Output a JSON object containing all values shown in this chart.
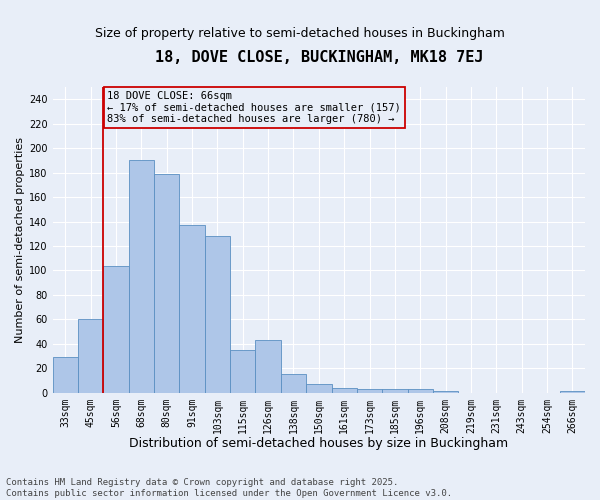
{
  "title": "18, DOVE CLOSE, BUCKINGHAM, MK18 7EJ",
  "subtitle": "Size of property relative to semi-detached houses in Buckingham",
  "xlabel": "Distribution of semi-detached houses by size in Buckingham",
  "ylabel": "Number of semi-detached properties",
  "categories": [
    "33sqm",
    "45sqm",
    "56sqm",
    "68sqm",
    "80sqm",
    "91sqm",
    "103sqm",
    "115sqm",
    "126sqm",
    "138sqm",
    "150sqm",
    "161sqm",
    "173sqm",
    "185sqm",
    "196sqm",
    "208sqm",
    "219sqm",
    "231sqm",
    "243sqm",
    "254sqm",
    "266sqm"
  ],
  "values": [
    29,
    60,
    104,
    190,
    179,
    137,
    128,
    35,
    43,
    15,
    7,
    4,
    3,
    3,
    3,
    1,
    0,
    0,
    0,
    0,
    1
  ],
  "bar_color": "#aec6e8",
  "bar_edge_color": "#5a8fc2",
  "background_color": "#e8eef8",
  "grid_color": "#ffffff",
  "vline_x_index": 2,
  "vline_color": "#cc0000",
  "annotation_text": "18 DOVE CLOSE: 66sqm\n← 17% of semi-detached houses are smaller (157)\n83% of semi-detached houses are larger (780) →",
  "annotation_box_color": "#cc0000",
  "ylim": [
    0,
    250
  ],
  "yticks": [
    0,
    20,
    40,
    60,
    80,
    100,
    120,
    140,
    160,
    180,
    200,
    220,
    240
  ],
  "footnote": "Contains HM Land Registry data © Crown copyright and database right 2025.\nContains public sector information licensed under the Open Government Licence v3.0.",
  "title_fontsize": 11,
  "subtitle_fontsize": 9,
  "xlabel_fontsize": 9,
  "ylabel_fontsize": 8,
  "tick_fontsize": 7,
  "annotation_fontsize": 7.5,
  "footnote_fontsize": 6.5
}
